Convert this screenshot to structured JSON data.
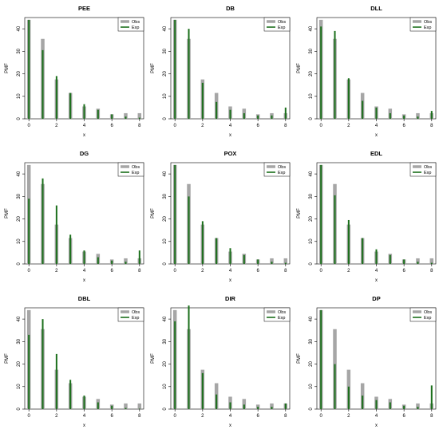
{
  "colors": {
    "obs": "#a6a6a6",
    "exp": "#1b6f1b",
    "axis": "#000000"
  },
  "legend_labels": {
    "obs": "Obs",
    "exp": "Exp"
  },
  "chart_data": [
    {
      "type": "bar",
      "title": "PEE",
      "xlabel": "x",
      "ylabel": "PMF",
      "legend_placement": "top-right",
      "x": [
        0,
        1,
        2,
        3,
        4,
        5,
        6,
        7,
        8
      ],
      "xticks": [
        0,
        2,
        4,
        6,
        8
      ],
      "yticks": [
        0,
        10,
        20,
        30,
        40
      ],
      "ylim": [
        0,
        45
      ],
      "series": [
        {
          "name": "Obs",
          "values": [
            44,
            35.5,
            17.5,
            11.5,
            5.5,
            4.5,
            2,
            2.5,
            2.5
          ]
        },
        {
          "name": "Exp",
          "values": [
            44,
            30.5,
            19,
            11.5,
            6.5,
            4,
            2,
            1,
            0.5
          ]
        }
      ]
    },
    {
      "type": "bar",
      "title": "DB",
      "xlabel": "x",
      "ylabel": "PMF",
      "legend_placement": "top-right",
      "x": [
        0,
        1,
        2,
        3,
        4,
        5,
        6,
        7,
        8
      ],
      "xticks": [
        0,
        2,
        4,
        6,
        8
      ],
      "yticks": [
        0,
        10,
        20,
        30,
        40
      ],
      "ylim": [
        0,
        45
      ],
      "series": [
        {
          "name": "Obs",
          "values": [
            44,
            35.5,
            17.5,
            11.5,
            5.5,
            4.5,
            2,
            2.5,
            2.5
          ]
        },
        {
          "name": "Exp",
          "values": [
            44,
            40,
            16,
            7.5,
            4,
            2.5,
            1.5,
            1.5,
            5
          ]
        }
      ]
    },
    {
      "type": "bar",
      "title": "DLL",
      "xlabel": "x",
      "ylabel": "PMF",
      "legend_placement": "top-right",
      "x": [
        0,
        1,
        2,
        3,
        4,
        5,
        6,
        7,
        8
      ],
      "xticks": [
        0,
        2,
        4,
        6,
        8
      ],
      "yticks": [
        0,
        10,
        20,
        30,
        40
      ],
      "ylim": [
        0,
        45
      ],
      "series": [
        {
          "name": "Obs",
          "values": [
            44,
            35.5,
            17.5,
            11.5,
            5.5,
            4.5,
            2,
            2.5,
            2.5
          ]
        },
        {
          "name": "Exp",
          "values": [
            41,
            39,
            18,
            8,
            5,
            2.5,
            1.5,
            1,
            3.5
          ]
        }
      ]
    },
    {
      "type": "bar",
      "title": "DG",
      "xlabel": "x",
      "ylabel": "PMF",
      "legend_placement": "top-right",
      "x": [
        0,
        1,
        2,
        3,
        4,
        5,
        6,
        7,
        8
      ],
      "xticks": [
        0,
        2,
        4,
        6,
        8
      ],
      "yticks": [
        0,
        10,
        20,
        30,
        40
      ],
      "ylim": [
        0,
        45
      ],
      "series": [
        {
          "name": "Obs",
          "values": [
            44,
            35.5,
            17.5,
            11.5,
            5.5,
            4.5,
            2,
            2.5,
            2.5
          ]
        },
        {
          "name": "Exp",
          "values": [
            29,
            38,
            26,
            13,
            6,
            3,
            1.5,
            1,
            6
          ]
        }
      ]
    },
    {
      "type": "bar",
      "title": "POX",
      "xlabel": "x",
      "ylabel": "PMF",
      "legend_placement": "top-right",
      "x": [
        0,
        1,
        2,
        3,
        4,
        5,
        6,
        7,
        8
      ],
      "xticks": [
        0,
        2,
        4,
        6,
        8
      ],
      "yticks": [
        0,
        10,
        20,
        30,
        40
      ],
      "ylim": [
        0,
        45
      ],
      "series": [
        {
          "name": "Obs",
          "values": [
            44,
            35.5,
            17.5,
            11.5,
            5.5,
            4.5,
            2,
            2.5,
            2.5
          ]
        },
        {
          "name": "Exp",
          "values": [
            44,
            30,
            19,
            11.5,
            7,
            4,
            2,
            1,
            0.5
          ]
        }
      ]
    },
    {
      "type": "bar",
      "title": "EDL",
      "xlabel": "x",
      "ylabel": "PMF",
      "legend_placement": "top-right",
      "x": [
        0,
        1,
        2,
        3,
        4,
        5,
        6,
        7,
        8
      ],
      "xticks": [
        0,
        2,
        4,
        6,
        8
      ],
      "yticks": [
        0,
        10,
        20,
        30,
        40
      ],
      "ylim": [
        0,
        45
      ],
      "series": [
        {
          "name": "Obs",
          "values": [
            44,
            35.5,
            17.5,
            11.5,
            5.5,
            4.5,
            2,
            2.5,
            2.5
          ]
        },
        {
          "name": "Exp",
          "values": [
            44,
            30.5,
            19.5,
            11.5,
            6.5,
            4,
            2,
            1,
            0.5
          ]
        }
      ]
    },
    {
      "type": "bar",
      "title": "DBL",
      "xlabel": "x",
      "ylabel": "PMF",
      "legend_placement": "top-right",
      "x": [
        0,
        1,
        2,
        3,
        4,
        5,
        6,
        7,
        8
      ],
      "xticks": [
        0,
        2,
        4,
        6,
        8
      ],
      "yticks": [
        0,
        10,
        20,
        30,
        40
      ],
      "ylim": [
        0,
        45
      ],
      "series": [
        {
          "name": "Obs",
          "values": [
            44,
            35.5,
            17.5,
            11.5,
            5.5,
            4.5,
            2,
            2.5,
            2.5
          ]
        },
        {
          "name": "Exp",
          "values": [
            33,
            40,
            24.5,
            13,
            6,
            3,
            1.5,
            0.5,
            0.2
          ]
        }
      ]
    },
    {
      "type": "bar",
      "title": "DIR",
      "xlabel": "x",
      "ylabel": "PMF",
      "legend_placement": "top-right",
      "x": [
        0,
        1,
        2,
        3,
        4,
        5,
        6,
        7,
        8
      ],
      "xticks": [
        0,
        2,
        4,
        6,
        8
      ],
      "yticks": [
        0,
        10,
        20,
        30,
        40
      ],
      "ylim": [
        0,
        45
      ],
      "series": [
        {
          "name": "Obs",
          "values": [
            44,
            35.5,
            17.5,
            11.5,
            5.5,
            4.5,
            2,
            2.5,
            2.5
          ]
        },
        {
          "name": "Exp",
          "values": [
            39,
            46,
            16,
            6.5,
            3,
            2,
            1,
            1,
            2.5
          ]
        }
      ]
    },
    {
      "type": "bar",
      "title": "DP",
      "xlabel": "x",
      "ylabel": "PMF",
      "legend_placement": "top-right",
      "x": [
        0,
        1,
        2,
        3,
        4,
        5,
        6,
        7,
        8
      ],
      "xticks": [
        0,
        2,
        4,
        6,
        8
      ],
      "yticks": [
        0,
        10,
        20,
        30,
        40
      ],
      "ylim": [
        0,
        45
      ],
      "series": [
        {
          "name": "Obs",
          "values": [
            44,
            35.5,
            17.5,
            11.5,
            5.5,
            4.5,
            2,
            2.5,
            2.5
          ]
        },
        {
          "name": "Exp",
          "values": [
            44,
            20,
            10,
            6,
            4,
            3,
            1.5,
            1,
            10.5
          ]
        }
      ]
    }
  ]
}
